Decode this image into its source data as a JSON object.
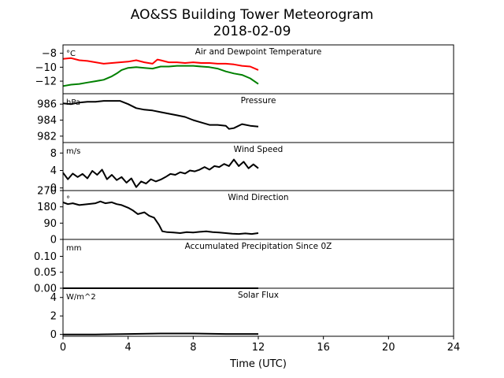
{
  "figure": {
    "title_line1": "AO&SS Building Tower Meteorogram",
    "title_line2": "2018-02-09",
    "xlabel": "Time (UTC)",
    "xlim": [
      0,
      24
    ],
    "xticks": [
      0,
      4,
      8,
      12,
      16,
      20,
      24
    ]
  },
  "chart_data": [
    {
      "type": "line",
      "title": "Air and Dewpoint Temperature",
      "unit": "°C",
      "ylim": [
        -13.8,
        -6.8
      ],
      "yticks": [
        -8,
        -10,
        -12
      ],
      "ytick_labels": [
        "−8",
        "−10",
        "−12"
      ],
      "series": [
        {
          "color": "#ff0000",
          "x": [
            0,
            0.5,
            1,
            1.5,
            2,
            2.5,
            3,
            3.5,
            4,
            4.5,
            5,
            5.5,
            5.8,
            6,
            6.5,
            7,
            7.5,
            8,
            8.5,
            9,
            9.5,
            10,
            10.5,
            11,
            11.5,
            12
          ],
          "y": [
            -8.8,
            -8.7,
            -9.0,
            -9.1,
            -9.3,
            -9.5,
            -9.4,
            -9.3,
            -9.2,
            -9.0,
            -9.3,
            -9.5,
            -8.9,
            -9.0,
            -9.3,
            -9.3,
            -9.4,
            -9.3,
            -9.4,
            -9.4,
            -9.5,
            -9.5,
            -9.6,
            -9.8,
            -9.9,
            -10.4
          ]
        },
        {
          "color": "#008000",
          "x": [
            0,
            0.5,
            1,
            1.5,
            2,
            2.5,
            3,
            3.3,
            3.6,
            4,
            4.5,
            5,
            5.5,
            6,
            6.5,
            7,
            7.5,
            8,
            8.5,
            9,
            9.5,
            10,
            10.5,
            11,
            11.5,
            12
          ],
          "y": [
            -12.7,
            -12.5,
            -12.4,
            -12.2,
            -12.0,
            -11.8,
            -11.3,
            -10.9,
            -10.4,
            -10.1,
            -10.0,
            -10.1,
            -10.2,
            -9.9,
            -9.9,
            -9.8,
            -9.8,
            -9.8,
            -9.9,
            -10.0,
            -10.2,
            -10.6,
            -10.9,
            -11.1,
            -11.6,
            -12.4
          ]
        }
      ]
    },
    {
      "type": "line",
      "title": "Pressure",
      "unit": "hPa",
      "ylim": [
        981.2,
        987.3
      ],
      "yticks": [
        986,
        984,
        982
      ],
      "series": [
        {
          "color": "#000000",
          "x": [
            0,
            0.5,
            1,
            1.5,
            2,
            2.5,
            3,
            3.5,
            4,
            4.5,
            5,
            5.5,
            6,
            6.5,
            7,
            7.5,
            8,
            8.5,
            9,
            9.5,
            10,
            10.2,
            10.5,
            11,
            11.5,
            12
          ],
          "y": [
            986.1,
            986.0,
            986.2,
            986.3,
            986.3,
            986.4,
            986.4,
            986.4,
            986.0,
            985.5,
            985.3,
            985.2,
            985.0,
            984.8,
            984.6,
            984.4,
            984.0,
            983.7,
            983.4,
            983.4,
            983.3,
            982.9,
            983.0,
            983.5,
            983.3,
            983.2
          ]
        }
      ]
    },
    {
      "type": "line",
      "title": "Wind Speed",
      "unit": "m/s",
      "ylim": [
        -0.6,
        10.4
      ],
      "yticks": [
        8,
        4,
        0
      ],
      "series": [
        {
          "color": "#000000",
          "x": [
            0,
            0.3,
            0.6,
            0.9,
            1.2,
            1.5,
            1.8,
            2.1,
            2.4,
            2.7,
            3,
            3.3,
            3.6,
            3.9,
            4.2,
            4.5,
            4.8,
            5.1,
            5.4,
            5.7,
            6,
            6.3,
            6.6,
            6.9,
            7.2,
            7.5,
            7.8,
            8.1,
            8.4,
            8.7,
            9,
            9.3,
            9.6,
            9.9,
            10.2,
            10.5,
            10.8,
            11.1,
            11.4,
            11.7,
            12
          ],
          "y": [
            3.5,
            2.0,
            3.3,
            2.5,
            3.2,
            2.2,
            3.9,
            3.0,
            4.2,
            2.0,
            3.0,
            1.8,
            2.5,
            1.2,
            2.2,
            0.2,
            1.5,
            1.0,
            2.0,
            1.5,
            1.9,
            2.5,
            3.2,
            3.0,
            3.6,
            3.3,
            4.0,
            3.8,
            4.2,
            4.8,
            4.2,
            5.0,
            4.8,
            5.5,
            5.0,
            6.5,
            5.0,
            6.0,
            4.5,
            5.4,
            4.5
          ]
        }
      ]
    },
    {
      "type": "line",
      "title": "Wind Direction",
      "unit": "°",
      "ylim": [
        0,
        270
      ],
      "yticks": [
        270,
        180,
        90,
        0
      ],
      "series": [
        {
          "color": "#000000",
          "x": [
            0,
            0.3,
            0.6,
            1,
            1.5,
            2,
            2.3,
            2.6,
            3,
            3.3,
            3.6,
            4,
            4.3,
            4.6,
            5,
            5.3,
            5.6,
            5.9,
            6.1,
            6.4,
            6.8,
            7.2,
            7.6,
            8,
            8.4,
            8.8,
            9.2,
            9.6,
            10,
            10.4,
            10.8,
            11.2,
            11.6,
            12
          ],
          "y": [
            205,
            195,
            200,
            190,
            195,
            200,
            210,
            200,
            205,
            195,
            190,
            175,
            160,
            140,
            150,
            130,
            120,
            80,
            45,
            40,
            38,
            35,
            40,
            38,
            42,
            45,
            40,
            38,
            35,
            32,
            30,
            33,
            30,
            35
          ]
        }
      ]
    },
    {
      "type": "line",
      "title": "Accumulated Precipitation Since 0Z",
      "unit": "mm",
      "ylim": [
        0,
        0.153
      ],
      "yticks": [
        0.1,
        0.05,
        0.0
      ],
      "ytick_labels": [
        "0.10",
        "0.05",
        "0.00"
      ],
      "series": [
        {
          "color": "#000000",
          "x": [
            0,
            12
          ],
          "y": [
            0,
            0
          ]
        }
      ]
    },
    {
      "type": "line",
      "title": "Solar Flux",
      "unit": "W/m^2",
      "ylim": [
        -0.2,
        5.0
      ],
      "yticks": [
        4,
        2,
        0
      ],
      "series": [
        {
          "color": "#000000",
          "x": [
            0,
            2,
            4,
            6,
            8,
            10,
            12
          ],
          "y": [
            0,
            0,
            0.05,
            0.1,
            0.1,
            0.05,
            0.05
          ]
        }
      ]
    }
  ]
}
